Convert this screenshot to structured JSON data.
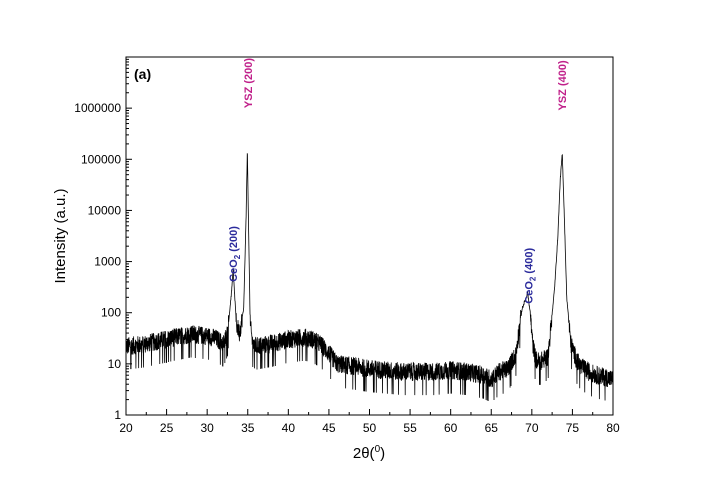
{
  "chart_data": {
    "type": "line",
    "panel_label": "(a)",
    "xlabel": "2θ(",
    "xlabel_sup": "0",
    "xlabel_end": ")",
    "ylabel": "Intensity (a.u.)",
    "xlim": [
      20,
      80
    ],
    "ylim": [
      1,
      10000000
    ],
    "y_scale": "log",
    "x_ticks": [
      20,
      25,
      30,
      35,
      40,
      45,
      50,
      55,
      60,
      65,
      70,
      75,
      80
    ],
    "y_ticks": [
      {
        "value": 1,
        "label": "1"
      },
      {
        "value": 10,
        "label": "10"
      },
      {
        "value": 100,
        "label": "100"
      },
      {
        "value": 1000,
        "label": "1000"
      },
      {
        "value": 10000,
        "label": "10000"
      },
      {
        "value": 100000,
        "label": "100000"
      },
      {
        "value": 1000000,
        "label": "1000000"
      }
    ],
    "grid": false,
    "line_color": "#000000",
    "series": [
      {
        "x": [
          20,
          22,
          24,
          26,
          28,
          30,
          31,
          32,
          32.5,
          33,
          33.2,
          33.4,
          33.6,
          34,
          34.5,
          34.8,
          34.95,
          35.1,
          35.3,
          35.6,
          36,
          38,
          40,
          42,
          43,
          44,
          45,
          46,
          48,
          50,
          52,
          54,
          56,
          58,
          60,
          62,
          64,
          65,
          66,
          67,
          68,
          68.8,
          69.2,
          69.5,
          69.8,
          70.1,
          70.5,
          71,
          72,
          72.8,
          73.2,
          73.5,
          73.75,
          74,
          74.3,
          74.8,
          75.5,
          76,
          77,
          78,
          79,
          80
        ],
        "y": [
          22,
          24,
          28,
          33,
          38,
          35,
          32,
          25,
          40,
          250,
          700,
          200,
          60,
          40,
          120,
          8000,
          150000,
          5000,
          60,
          25,
          22,
          25,
          30,
          33,
          30,
          24,
          16,
          10,
          9,
          8,
          7.5,
          7,
          7,
          7,
          7.5,
          7,
          6,
          5,
          7,
          8,
          15,
          120,
          180,
          240,
          100,
          25,
          12,
          11,
          14,
          300,
          3000,
          40000,
          130000,
          8000,
          200,
          25,
          12,
          9,
          7,
          6,
          5.5,
          5
        ]
      }
    ],
    "annotations": [
      {
        "x": 33.2,
        "y": 400,
        "label": "CeO",
        "sub": "2",
        "after": " (200)",
        "color": "#2b2b9c"
      },
      {
        "x": 35.0,
        "y": 1000000,
        "label": "YSZ (200)",
        "sub": "",
        "after": "",
        "color": "#c0208a"
      },
      {
        "x": 69.6,
        "y": 150,
        "label": "CeO",
        "sub": "2",
        "after": " (400)",
        "color": "#2b2b9c"
      },
      {
        "x": 73.7,
        "y": 900000,
        "label": "YSZ (400)",
        "sub": "",
        "after": "",
        "color": "#c0208a"
      }
    ]
  }
}
